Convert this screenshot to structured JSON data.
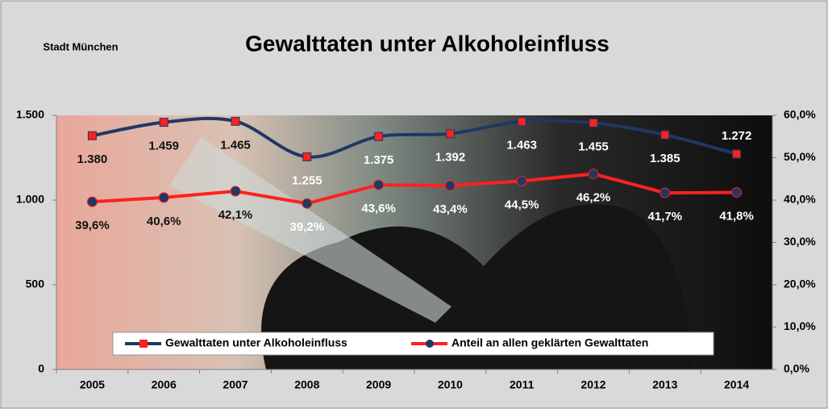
{
  "chart_data": {
    "type": "line",
    "title": "Gewalttaten unter Alkoholeinfluss",
    "subtitle": "Stadt München",
    "categories": [
      "2005",
      "2006",
      "2007",
      "2008",
      "2009",
      "2010",
      "2011",
      "2012",
      "2013",
      "2014"
    ],
    "series": [
      {
        "name": "Gewalttaten unter Alkoholeinfluss",
        "color": "#1f3864",
        "marker_color": "#ff2020",
        "marker": "square",
        "values": [
          1380,
          1459,
          1465,
          1255,
          1375,
          1392,
          1463,
          1455,
          1385,
          1272
        ],
        "value_labels": [
          "1.380",
          "1.459",
          "1.465",
          "1.255",
          "1.375",
          "1.392",
          "1.463",
          "1.455",
          "1.385",
          "1.272"
        ]
      },
      {
        "name": "Anteil an allen geklärten Gewalttaten",
        "color": "#ff2020",
        "marker_color": "#1f3864",
        "marker": "circle",
        "axis": "y2",
        "values": [
          39.6,
          40.6,
          42.1,
          39.2,
          43.6,
          43.4,
          44.5,
          46.2,
          41.7,
          41.8
        ],
        "value_labels": [
          "39,6%",
          "40,6%",
          "42,1%",
          "39,2%",
          "43,6%",
          "43,4%",
          "44,5%",
          "46,2%",
          "41,7%",
          "41,8%"
        ]
      }
    ],
    "ylim": [
      0,
      1500
    ],
    "yticks": [
      0,
      500,
      {
        "value": 1000,
        "label": "1.000"
      },
      {
        "value": 1500,
        "label": "1.500"
      }
    ],
    "y2lim": [
      0,
      60
    ],
    "y2ticks": [
      {
        "value": 0,
        "label": "0,0%"
      },
      {
        "value": 10,
        "label": "10,0%"
      },
      {
        "value": 20,
        "label": "20,0%"
      },
      {
        "value": 30,
        "label": "30,0%"
      },
      {
        "value": 40,
        "label": "40,0%"
      },
      {
        "value": 50,
        "label": "50,0%"
      },
      {
        "value": 60,
        "label": "60,0%"
      }
    ],
    "legend": "bottom"
  }
}
